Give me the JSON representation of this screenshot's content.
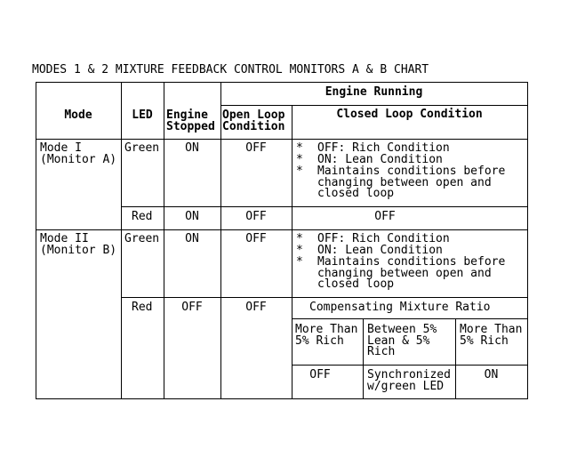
{
  "title": "MODES 1 & 2 MIXTURE FEEDBACK CONTROL MONITORS A & B CHART",
  "headers": {
    "mode": "Mode",
    "led": "LED",
    "engine_stopped": "Engine\nStopped",
    "engine_running": "Engine Running",
    "open_loop": "Open Loop\nCondition",
    "closed_loop": "Closed Loop Condition"
  },
  "rows": [
    {
      "mode": "Mode I\n(Monitor A)",
      "led": "Green",
      "stopped": "ON",
      "open": "OFF",
      "closed": [
        "OFF: Rich Condition",
        "ON: Lean Condition",
        "Maintains conditions before\nchanging between open and\nclosed loop"
      ]
    },
    {
      "led": "Red",
      "stopped": "ON",
      "open": "OFF",
      "closed": "OFF"
    },
    {
      "mode": "Mode II\n(Monitor B)",
      "led": "Green",
      "stopped": "ON",
      "open": "OFF",
      "closed": [
        "OFF: Rich Condition",
        "ON: Lean Condition",
        "Maintains conditions before\nchanging between open and\nclosed loop"
      ]
    },
    {
      "led": "Red",
      "stopped": "OFF",
      "open": "OFF",
      "compensating": {
        "title": "Compensating Mixture Ratio",
        "columns": [
          "More Than\n5% Rich",
          "Between 5%\nLean & 5%\nRich",
          "More Than\n5% Rich"
        ],
        "values": [
          "OFF",
          "Synchronized\nw/green LED",
          "ON"
        ]
      }
    }
  ],
  "bullet": "*"
}
